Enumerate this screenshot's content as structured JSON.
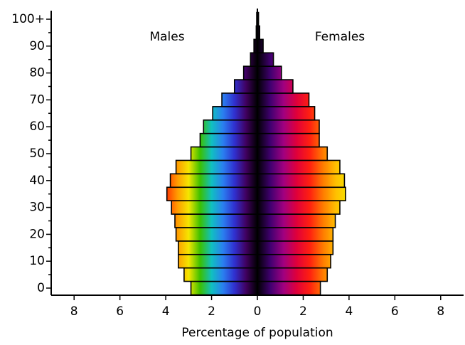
{
  "chart_data": {
    "type": "pyramid",
    "xlabel": "Percentage of population",
    "categories": [
      "0",
      null,
      "10",
      null,
      "20",
      null,
      "30",
      null,
      "40",
      null,
      "50",
      null,
      "60",
      null,
      "70",
      null,
      "80",
      null,
      "90",
      null,
      "100+"
    ],
    "series": [
      {
        "name": "Males",
        "side": "left",
        "colors": [
          "#ff3000",
          "#ff9a00",
          "#f5e600",
          "#3cc000",
          "#10c0c0",
          "#2a7ff0",
          "#3030d0",
          "#400060",
          "#000000"
        ],
        "values": [
          2.9,
          3.2,
          3.45,
          3.45,
          3.55,
          3.6,
          3.75,
          3.95,
          3.8,
          3.55,
          2.9,
          2.5,
          2.35,
          1.95,
          1.55,
          1.0,
          0.6,
          0.3,
          0.15,
          0.05,
          0.03
        ]
      },
      {
        "name": "Females",
        "side": "right",
        "colors": [
          "#000000",
          "#400070",
          "#a00080",
          "#e0003a",
          "#ff2010",
          "#ff7a00",
          "#ffc000",
          "#f5e600"
        ],
        "values": [
          2.75,
          3.05,
          3.2,
          3.3,
          3.3,
          3.4,
          3.6,
          3.85,
          3.8,
          3.6,
          3.05,
          2.7,
          2.7,
          2.5,
          2.25,
          1.55,
          1.05,
          0.7,
          0.25,
          0.1,
          0.05
        ]
      }
    ],
    "xlim": [
      -9,
      9
    ],
    "xticks": [
      {
        "value": -8,
        "label": "8"
      },
      {
        "value": -6,
        "label": "6"
      },
      {
        "value": -4,
        "label": "4"
      },
      {
        "value": -2,
        "label": "2"
      },
      0,
      2,
      4,
      6,
      8
    ]
  }
}
